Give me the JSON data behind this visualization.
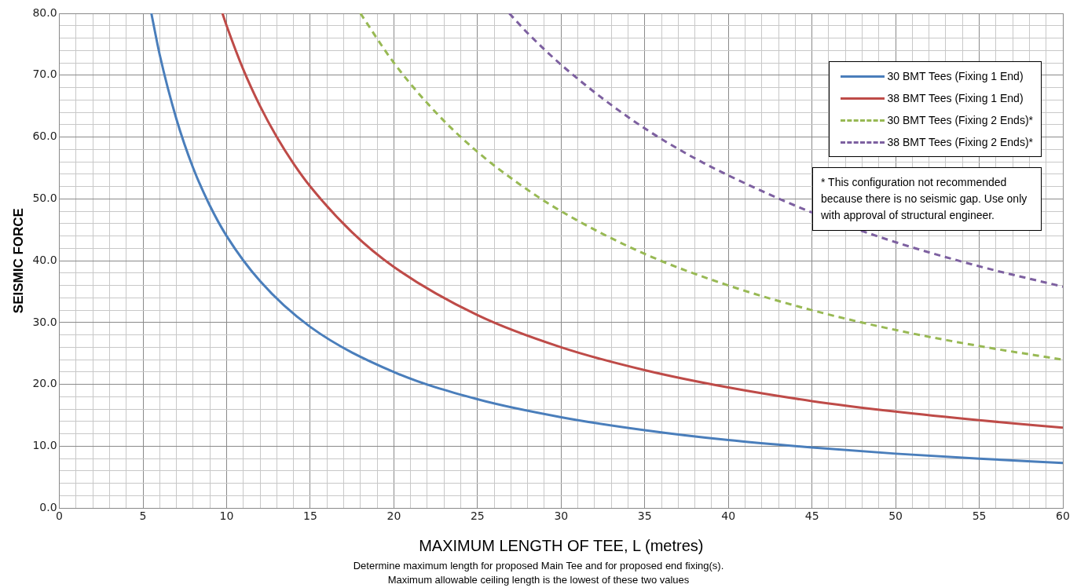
{
  "chart_data": {
    "type": "line",
    "xlabel": "MAXIMUM LENGTH OF TEE, L (metres)",
    "ylabel": "SEISMIC FORCE",
    "xlim": [
      0,
      60
    ],
    "ylim": [
      0,
      80
    ],
    "xticks": [
      0,
      {
        "value": 1,
        "label": null
      },
      {
        "value": 2,
        "label": null
      },
      {
        "value": 3,
        "label": null
      },
      {
        "value": 4,
        "label": null
      },
      5,
      {
        "value": 6,
        "label": null
      },
      {
        "value": 7,
        "label": null
      },
      {
        "value": 8,
        "label": null
      },
      {
        "value": 9,
        "label": null
      },
      10,
      {
        "value": 11,
        "label": null
      },
      {
        "value": 12,
        "label": null
      },
      {
        "value": 13,
        "label": null
      },
      {
        "value": 14,
        "label": null
      },
      15,
      {
        "value": 16,
        "label": null
      },
      {
        "value": 17,
        "label": null
      },
      {
        "value": 18,
        "label": null
      },
      {
        "value": 19,
        "label": null
      },
      20,
      {
        "value": 21,
        "label": null
      },
      {
        "value": 22,
        "label": null
      },
      {
        "value": 23,
        "label": null
      },
      {
        "value": 24,
        "label": null
      },
      25,
      {
        "value": 26,
        "label": null
      },
      {
        "value": 27,
        "label": null
      },
      {
        "value": 28,
        "label": null
      },
      {
        "value": 29,
        "label": null
      },
      30,
      {
        "value": 31,
        "label": null
      },
      {
        "value": 32,
        "label": null
      },
      {
        "value": 33,
        "label": null
      },
      {
        "value": 34,
        "label": null
      },
      35,
      {
        "value": 36,
        "label": null
      },
      {
        "value": 37,
        "label": null
      },
      {
        "value": 38,
        "label": null
      },
      {
        "value": 39,
        "label": null
      },
      40,
      {
        "value": 41,
        "label": null
      },
      {
        "value": 42,
        "label": null
      },
      {
        "value": 43,
        "label": null
      },
      {
        "value": 44,
        "label": null
      },
      45,
      {
        "value": 46,
        "label": null
      },
      {
        "value": 47,
        "label": null
      },
      {
        "value": 48,
        "label": null
      },
      {
        "value": 49,
        "label": null
      },
      50,
      {
        "value": 51,
        "label": null
      },
      {
        "value": 52,
        "label": null
      },
      {
        "value": 53,
        "label": null
      },
      {
        "value": 54,
        "label": null
      },
      55,
      {
        "value": 56,
        "label": null
      },
      {
        "value": 57,
        "label": null
      },
      {
        "value": 58,
        "label": null
      },
      {
        "value": 59,
        "label": null
      },
      60
    ],
    "yticks": [
      {
        "value": 0,
        "label": "0.0"
      },
      {
        "value": 2,
        "label": null
      },
      {
        "value": 4,
        "label": null
      },
      {
        "value": 6,
        "label": null
      },
      {
        "value": 8,
        "label": null
      },
      {
        "value": 10,
        "label": "10.0"
      },
      {
        "value": 12,
        "label": null
      },
      {
        "value": 14,
        "label": null
      },
      {
        "value": 16,
        "label": null
      },
      {
        "value": 18,
        "label": null
      },
      {
        "value": 20,
        "label": "20.0"
      },
      {
        "value": 22,
        "label": null
      },
      {
        "value": 24,
        "label": null
      },
      {
        "value": 26,
        "label": null
      },
      {
        "value": 28,
        "label": null
      },
      {
        "value": 30,
        "label": "30.0"
      },
      {
        "value": 32,
        "label": null
      },
      {
        "value": 34,
        "label": null
      },
      {
        "value": 36,
        "label": null
      },
      {
        "value": 38,
        "label": null
      },
      {
        "value": 40,
        "label": "40.0"
      },
      {
        "value": 42,
        "label": null
      },
      {
        "value": 44,
        "label": null
      },
      {
        "value": 46,
        "label": null
      },
      {
        "value": 48,
        "label": null
      },
      {
        "value": 50,
        "label": "50.0"
      },
      {
        "value": 52,
        "label": null
      },
      {
        "value": 54,
        "label": null
      },
      {
        "value": 56,
        "label": null
      },
      {
        "value": 58,
        "label": null
      },
      {
        "value": 60,
        "label": "60.0"
      },
      {
        "value": 62,
        "label": null
      },
      {
        "value": 64,
        "label": null
      },
      {
        "value": 66,
        "label": null
      },
      {
        "value": 68,
        "label": null
      },
      {
        "value": 70,
        "label": "70.0"
      },
      {
        "value": 72,
        "label": null
      },
      {
        "value": 74,
        "label": null
      },
      {
        "value": 76,
        "label": null
      },
      {
        "value": 78,
        "label": null
      },
      {
        "value": 80,
        "label": "80.0"
      }
    ],
    "grid": true,
    "legend": "top right",
    "marker": "none",
    "series": [
      {
        "name": "30 BMT Tees (Fixing 1 End)",
        "color": "#4a7ebb",
        "line_style": "solid",
        "x": [
          5.5,
          6,
          7,
          8,
          9,
          10,
          12,
          15,
          20,
          25,
          30,
          35,
          40,
          45,
          50,
          55,
          60
        ],
        "values": [
          80,
          73.3,
          62.9,
          55,
          48.9,
          44,
          36.7,
          29.3,
          22,
          17.6,
          14.7,
          12.6,
          11,
          9.8,
          8.8,
          8,
          7.3
        ]
      },
      {
        "name": "38 BMT Tees (Fixing 1 End)",
        "color": "#be4b48",
        "line_style": "solid",
        "x": [
          9.75,
          10,
          11,
          12,
          13,
          14,
          15,
          17.5,
          20,
          25,
          30,
          35,
          40,
          45,
          50,
          55,
          60
        ],
        "values": [
          80,
          78,
          70.9,
          65,
          60,
          55.7,
          52,
          44.6,
          39,
          31.2,
          26,
          22.3,
          19.5,
          17.3,
          15.6,
          14.2,
          13
        ]
      },
      {
        "name": "30 BMT Tees (Fixing 2 Ends)*",
        "color": "#98b954",
        "line_style": "dashed",
        "x": [
          18,
          20,
          22.5,
          25,
          27.5,
          30,
          35,
          40,
          45,
          50,
          55,
          60
        ],
        "values": [
          80,
          72,
          64,
          57.6,
          52.4,
          48,
          41.1,
          36,
          32,
          28.8,
          26.2,
          24
        ]
      },
      {
        "name": "38 BMT Tees (Fixing 2 Ends)*",
        "color": "#7d60a0",
        "line_style": "dashed",
        "x": [
          26.9,
          28,
          30,
          32.5,
          35,
          37.5,
          40,
          45,
          50,
          55,
          60
        ],
        "values": [
          80,
          76.8,
          71.7,
          66.2,
          61.4,
          57.3,
          53.8,
          47.8,
          43,
          39.1,
          35.8
        ]
      }
    ],
    "annotations": [
      "* This configuration not recommended because there is no seismic gap. Use only with approval of structural engineer.",
      "Determine maximum length for proposed Main Tee and for proposed end fixing(s).",
      "Maximum allowable ceiling length is the lowest of these two values"
    ]
  }
}
